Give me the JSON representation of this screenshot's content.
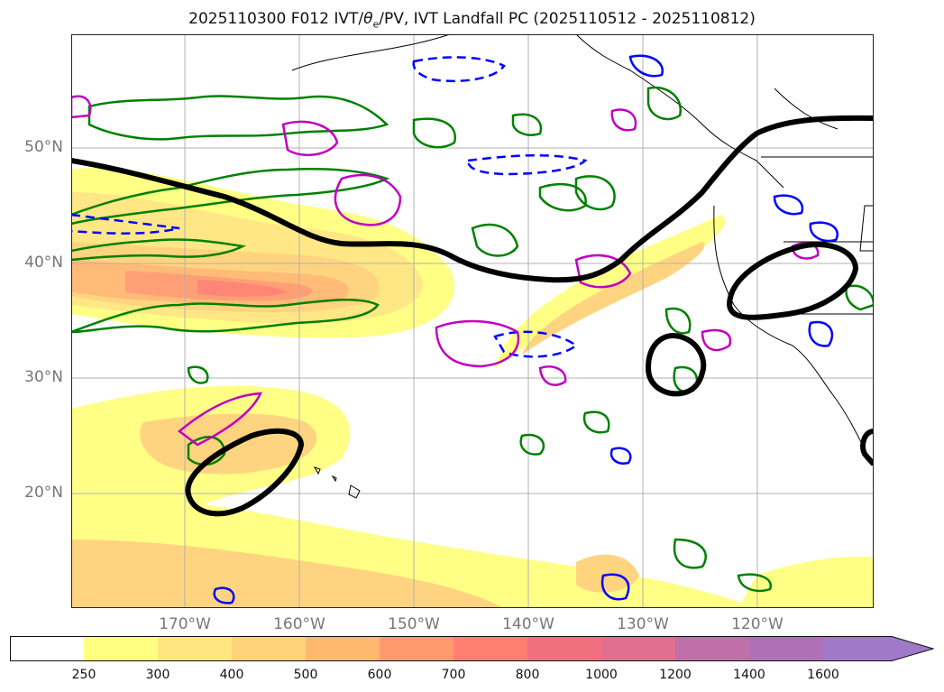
{
  "title": {
    "prefix": "2025110300 F012 IVT/",
    "theta_symbol": "θ",
    "theta_sub": "e",
    "suffix": "/PV, IVT Landfall PC (2025110512 - 2025110812)"
  },
  "map": {
    "lat_labels": [
      "50°N",
      "40°N",
      "30°N",
      "20°N"
    ],
    "lon_labels": [
      "170°W",
      "160°W",
      "150°W",
      "140°W",
      "130°W",
      "120°W"
    ],
    "colors": {
      "ivt_fill": [
        "#ffff80",
        "#ffe680",
        "#ffd27a",
        "#ffb870",
        "#ff9a6e",
        "#ff8070",
        "#e0708f",
        "#b870b0",
        "#a070c8"
      ],
      "pos_theta_contour": "#008000",
      "neg_contour": "#0000ff",
      "pv_contour": "#c000c0",
      "landfall_pc": "#000000",
      "coast": "#000000",
      "grid": "#b0b0b0"
    }
  },
  "colorbar": {
    "ticks": [
      "250",
      "300",
      "400",
      "500",
      "600",
      "700",
      "800",
      "1000",
      "1200",
      "1400",
      "1600"
    ],
    "colors": [
      "#ffffff",
      "#ffff80",
      "#ffe680",
      "#ffd27a",
      "#ffb870",
      "#ff9a6e",
      "#ff8070",
      "#f07080",
      "#e0708f",
      "#c070a8",
      "#b070b8",
      "#a07ac8"
    ]
  }
}
